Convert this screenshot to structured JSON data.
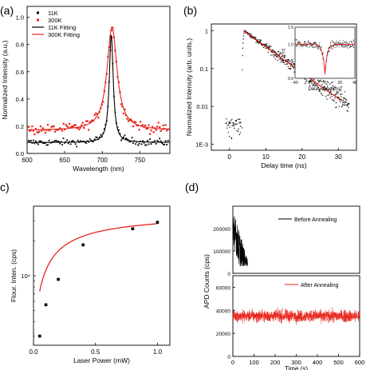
{
  "panels": {
    "a": "(a)",
    "b": "(b)",
    "c": "c)",
    "d": "(d)"
  },
  "colors": {
    "black": "#000000",
    "red": "#e8251d"
  },
  "chart_data": [
    {
      "id": "a",
      "type": "scatter",
      "xlabel": "Wavelength (nm)",
      "ylabel": "Normalized Intensity (a.u.)",
      "xlim": [
        600,
        790
      ],
      "ylim": [
        0.0,
        1.08
      ],
      "xticks": [
        600,
        650,
        700,
        750
      ],
      "yticks": [
        0.0,
        0.2,
        0.4,
        0.6,
        0.8,
        1.0
      ],
      "ytick_labels": [
        "0.0",
        "0.2",
        "0.4",
        "0.6",
        "0.8",
        "1.0"
      ],
      "legend": [
        "11K",
        "300K",
        "11K Fitting",
        "300K Fitting"
      ],
      "legend_position": "top-left",
      "series": [
        {
          "name": "11K",
          "peak": 712,
          "width": 3.2,
          "base": 0.08,
          "amp": 0.79,
          "noise": 0.025,
          "style": "points",
          "color": "#000000"
        },
        {
          "name": "300K",
          "peak": 713,
          "width": 8,
          "base": 0.17,
          "amp": 0.76,
          "noise": 0.035,
          "style": "points",
          "color": "#e8251d"
        },
        {
          "name": "11K Fitting",
          "peak": 712,
          "width": 3.2,
          "base": 0.08,
          "amp": 0.79,
          "style": "line",
          "color": "#000000"
        },
        {
          "name": "300K Fitting",
          "peak": 713,
          "width": 8,
          "base": 0.17,
          "amp": 0.76,
          "style": "line",
          "color": "#e8251d"
        }
      ]
    },
    {
      "id": "b",
      "type": "scatter",
      "xlabel": "Delay time (ns)",
      "ylabel": "Normalized Intensity (arb. units.)",
      "xlim": [
        -5,
        35
      ],
      "ylim": [
        0.0007,
        1.5
      ],
      "log_y": true,
      "xticks": [
        0,
        10,
        20,
        30
      ],
      "yticks": [
        0.001,
        0.01,
        0.1,
        1
      ],
      "ytick_labels": [
        "1E-3",
        "0.01",
        "0.1",
        "1"
      ],
      "decay_tau_ns": 6.2,
      "peak_time_ns": 4,
      "fit_color": "#e8251d",
      "inset": {
        "xlabel": "Delay Time (ns)",
        "ylabel": "g²(τ)",
        "xlim": [
          -40,
          40
        ],
        "ylim": [
          0.0,
          1.5
        ],
        "xticks": [
          -40,
          -20,
          0,
          20,
          40
        ],
        "yticks": [
          0.0,
          0.5,
          1.0,
          1.5
        ],
        "ytick_labels": [
          "0.0",
          "0.5",
          "1.0",
          "1.5"
        ],
        "dip_min": 0.12,
        "dip_width_ns": 3
      }
    },
    {
      "id": "c",
      "type": "scatter",
      "xlabel": "Laser Power (mW)",
      "ylabel": "Flour. Inten. (cps)",
      "xlim": [
        0.0,
        1.1
      ],
      "log_y": true,
      "ylim": [
        2500,
        40000
      ],
      "xticks": [
        0.0,
        0.5,
        1.0
      ],
      "ytick_labels": [
        "0.0",
        "0.5",
        "1.0"
      ],
      "ylabel_tick": "10⁴",
      "x": [
        0.05,
        0.1,
        0.2,
        0.4,
        0.8,
        1.0
      ],
      "y": [
        3000,
        5600,
        9300,
        18500,
        25500,
        29000
      ],
      "fit_color": "#e8251d"
    },
    {
      "id": "d",
      "type": "line",
      "xlabel": "Time (s)",
      "ylabel": "APD Counts (cps)",
      "xlim": [
        0,
        600
      ],
      "xticks": [
        0,
        100,
        200,
        300,
        400,
        500,
        600
      ],
      "top": {
        "legend": "Before Annealing",
        "ylim": [
          0,
          300000
        ],
        "yticks": [
          0,
          100000,
          200000
        ],
        "ytick_labels": [
          "0",
          "100000",
          "200000"
        ],
        "color": "#000000",
        "duration_s": 70
      },
      "bottom": {
        "legend": "After Annealing",
        "ylim": [
          0,
          70000
        ],
        "yticks": [
          0,
          20000,
          40000,
          60000
        ],
        "ytick_labels": [
          "0",
          "20000",
          "40000",
          "60000"
        ],
        "mean": 35000,
        "spread": 5000,
        "color": "#e8251d"
      }
    }
  ]
}
